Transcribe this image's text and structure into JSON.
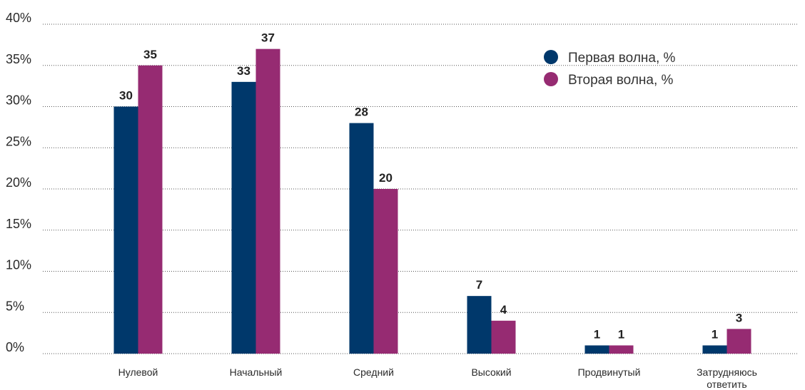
{
  "chart_data": {
    "type": "bar",
    "title": "",
    "xlabel": "",
    "ylabel": "",
    "ylim": [
      0,
      40
    ],
    "y_ticks": [
      "0%",
      "5%",
      "10%",
      "15%",
      "20%",
      "25%",
      "30%",
      "35%",
      "40%"
    ],
    "categories": [
      [
        "Нулевой"
      ],
      [
        "Начальный"
      ],
      [
        "Средний"
      ],
      [
        "Высокий"
      ],
      [
        "Продвинутый"
      ],
      [
        "Затрудняюсь",
        "ответить"
      ]
    ],
    "series": [
      {
        "name": "Первая волна, %",
        "color": "#00386b",
        "values": [
          30,
          33,
          28,
          7,
          1,
          1
        ]
      },
      {
        "name": "Вторая волна, %",
        "color": "#962b72",
        "values": [
          35,
          37,
          20,
          4,
          1,
          3
        ]
      }
    ],
    "grid": "horizontal-dotted",
    "legend": "top-right",
    "data_labels": true
  }
}
